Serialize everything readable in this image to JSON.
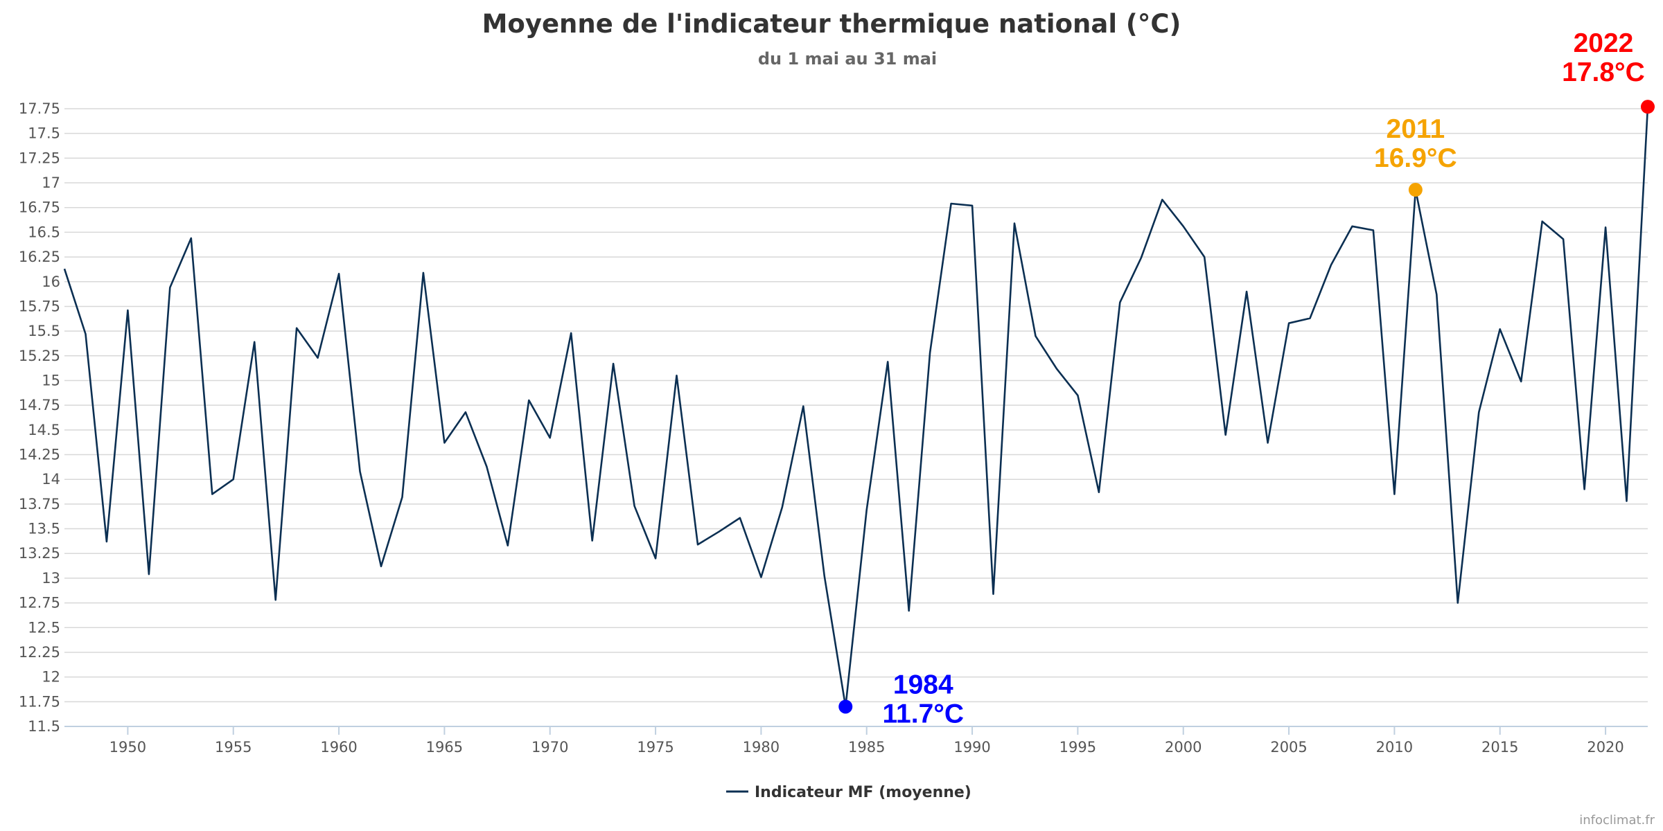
{
  "chart_data": {
    "type": "line",
    "title": "Moyenne de l'indicateur thermique national (°C)",
    "subtitle": "du 1 mai au 31 mai",
    "xlabel": "",
    "ylabel": "",
    "xlim": [
      1947,
      2022
    ],
    "ylim": [
      11.5,
      17.75
    ],
    "grid": true,
    "legend_position": "bottom-center",
    "x_ticks": [
      1950,
      1955,
      1960,
      1965,
      1970,
      1975,
      1980,
      1985,
      1990,
      1995,
      2000,
      2005,
      2010,
      2015,
      2020
    ],
    "y_ticks": [
      11.5,
      11.75,
      12,
      12.25,
      12.5,
      12.75,
      13,
      13.25,
      13.5,
      13.75,
      14,
      14.25,
      14.5,
      14.75,
      15,
      15.25,
      15.5,
      15.75,
      16,
      16.25,
      16.5,
      16.75,
      17,
      17.25,
      17.5,
      17.75
    ],
    "series": [
      {
        "name": "Indicateur MF (moyenne)",
        "color": "#0b2f52",
        "x": [
          1947,
          1948,
          1949,
          1950,
          1951,
          1952,
          1953,
          1954,
          1955,
          1956,
          1957,
          1958,
          1959,
          1960,
          1961,
          1962,
          1963,
          1964,
          1965,
          1966,
          1967,
          1968,
          1969,
          1970,
          1971,
          1972,
          1973,
          1974,
          1975,
          1976,
          1977,
          1978,
          1979,
          1980,
          1981,
          1982,
          1983,
          1984,
          1985,
          1986,
          1987,
          1988,
          1989,
          1990,
          1991,
          1992,
          1993,
          1994,
          1995,
          1996,
          1997,
          1998,
          1999,
          2000,
          2001,
          2002,
          2003,
          2004,
          2005,
          2006,
          2007,
          2008,
          2009,
          2010,
          2011,
          2012,
          2013,
          2014,
          2015,
          2016,
          2017,
          2018,
          2019,
          2020,
          2021,
          2022
        ],
        "values": [
          16.13,
          15.47,
          13.37,
          15.71,
          13.04,
          15.94,
          16.44,
          13.85,
          14.0,
          15.39,
          12.78,
          15.53,
          15.23,
          16.08,
          14.08,
          13.12,
          13.82,
          16.09,
          14.37,
          14.68,
          14.13,
          13.33,
          14.8,
          14.42,
          15.48,
          13.38,
          15.17,
          13.73,
          13.2,
          15.05,
          13.34,
          13.47,
          13.61,
          13.01,
          13.72,
          14.74,
          13.02,
          11.7,
          13.69,
          15.19,
          12.67,
          15.28,
          16.79,
          16.77,
          12.84,
          16.59,
          15.45,
          15.12,
          14.85,
          13.87,
          15.79,
          16.24,
          16.83,
          16.56,
          16.25,
          14.45,
          15.9,
          14.37,
          15.58,
          15.63,
          16.17,
          16.56,
          16.52,
          13.85,
          16.93,
          15.87,
          12.75,
          14.68,
          15.52,
          14.99,
          16.61,
          16.43,
          13.9,
          16.55,
          13.78,
          17.77
        ]
      }
    ],
    "annotations": [
      {
        "year_label": "1984",
        "value_label": "11.7°C",
        "x": 1984,
        "y": 11.7,
        "color": "#0000ff",
        "position": "below-right"
      },
      {
        "year_label": "2011",
        "value_label": "16.9°C",
        "x": 2011,
        "y": 16.93,
        "color": "#f5a300",
        "position": "above"
      },
      {
        "year_label": "2022",
        "value_label": "17.8°C",
        "x": 2022,
        "y": 17.77,
        "color": "#ff0000",
        "position": "above-left"
      }
    ],
    "watermark": "infoclimat.fr"
  },
  "colors": {
    "grid": "#d8d8d8",
    "axis": "#c0d0e0",
    "line": "#0b2f52",
    "title": "#333333",
    "subtitle": "#666666",
    "watermark": "#999999"
  }
}
